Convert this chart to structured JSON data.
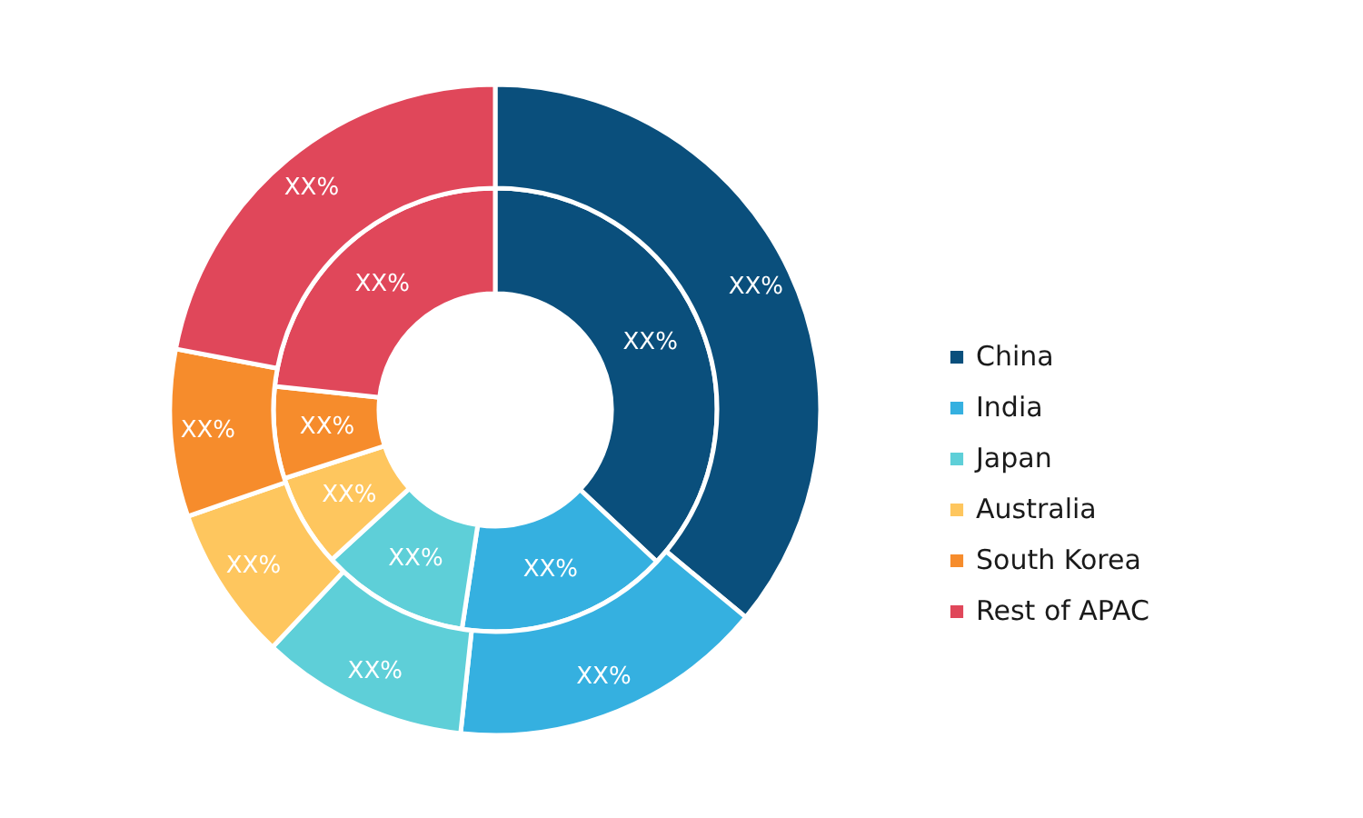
{
  "chart_data": {
    "type": "donut",
    "categories": [
      "China",
      "India",
      "Japan",
      "Australia",
      "South Korea",
      "Rest of APAC"
    ],
    "colors": [
      "#0a4f7c",
      "#35b0e0",
      "#5ecfd8",
      "#fec65e",
      "#f68c2c",
      "#e0475a"
    ],
    "series": [
      {
        "values": [
          37,
          15.4,
          10.8,
          6.8,
          6.7,
          23.3
        ],
        "value_labels": [
          "XX%",
          "XX%",
          "XX%",
          "XX%",
          "XX%",
          "XX%"
        ]
      },
      {
        "values": [
          36,
          15.7,
          10.3,
          7.7,
          8.3,
          22
        ],
        "value_labels": [
          "XX%",
          "XX%",
          "XX%",
          "XX%",
          "XX%",
          "XX%"
        ]
      }
    ],
    "legend": "right"
  }
}
